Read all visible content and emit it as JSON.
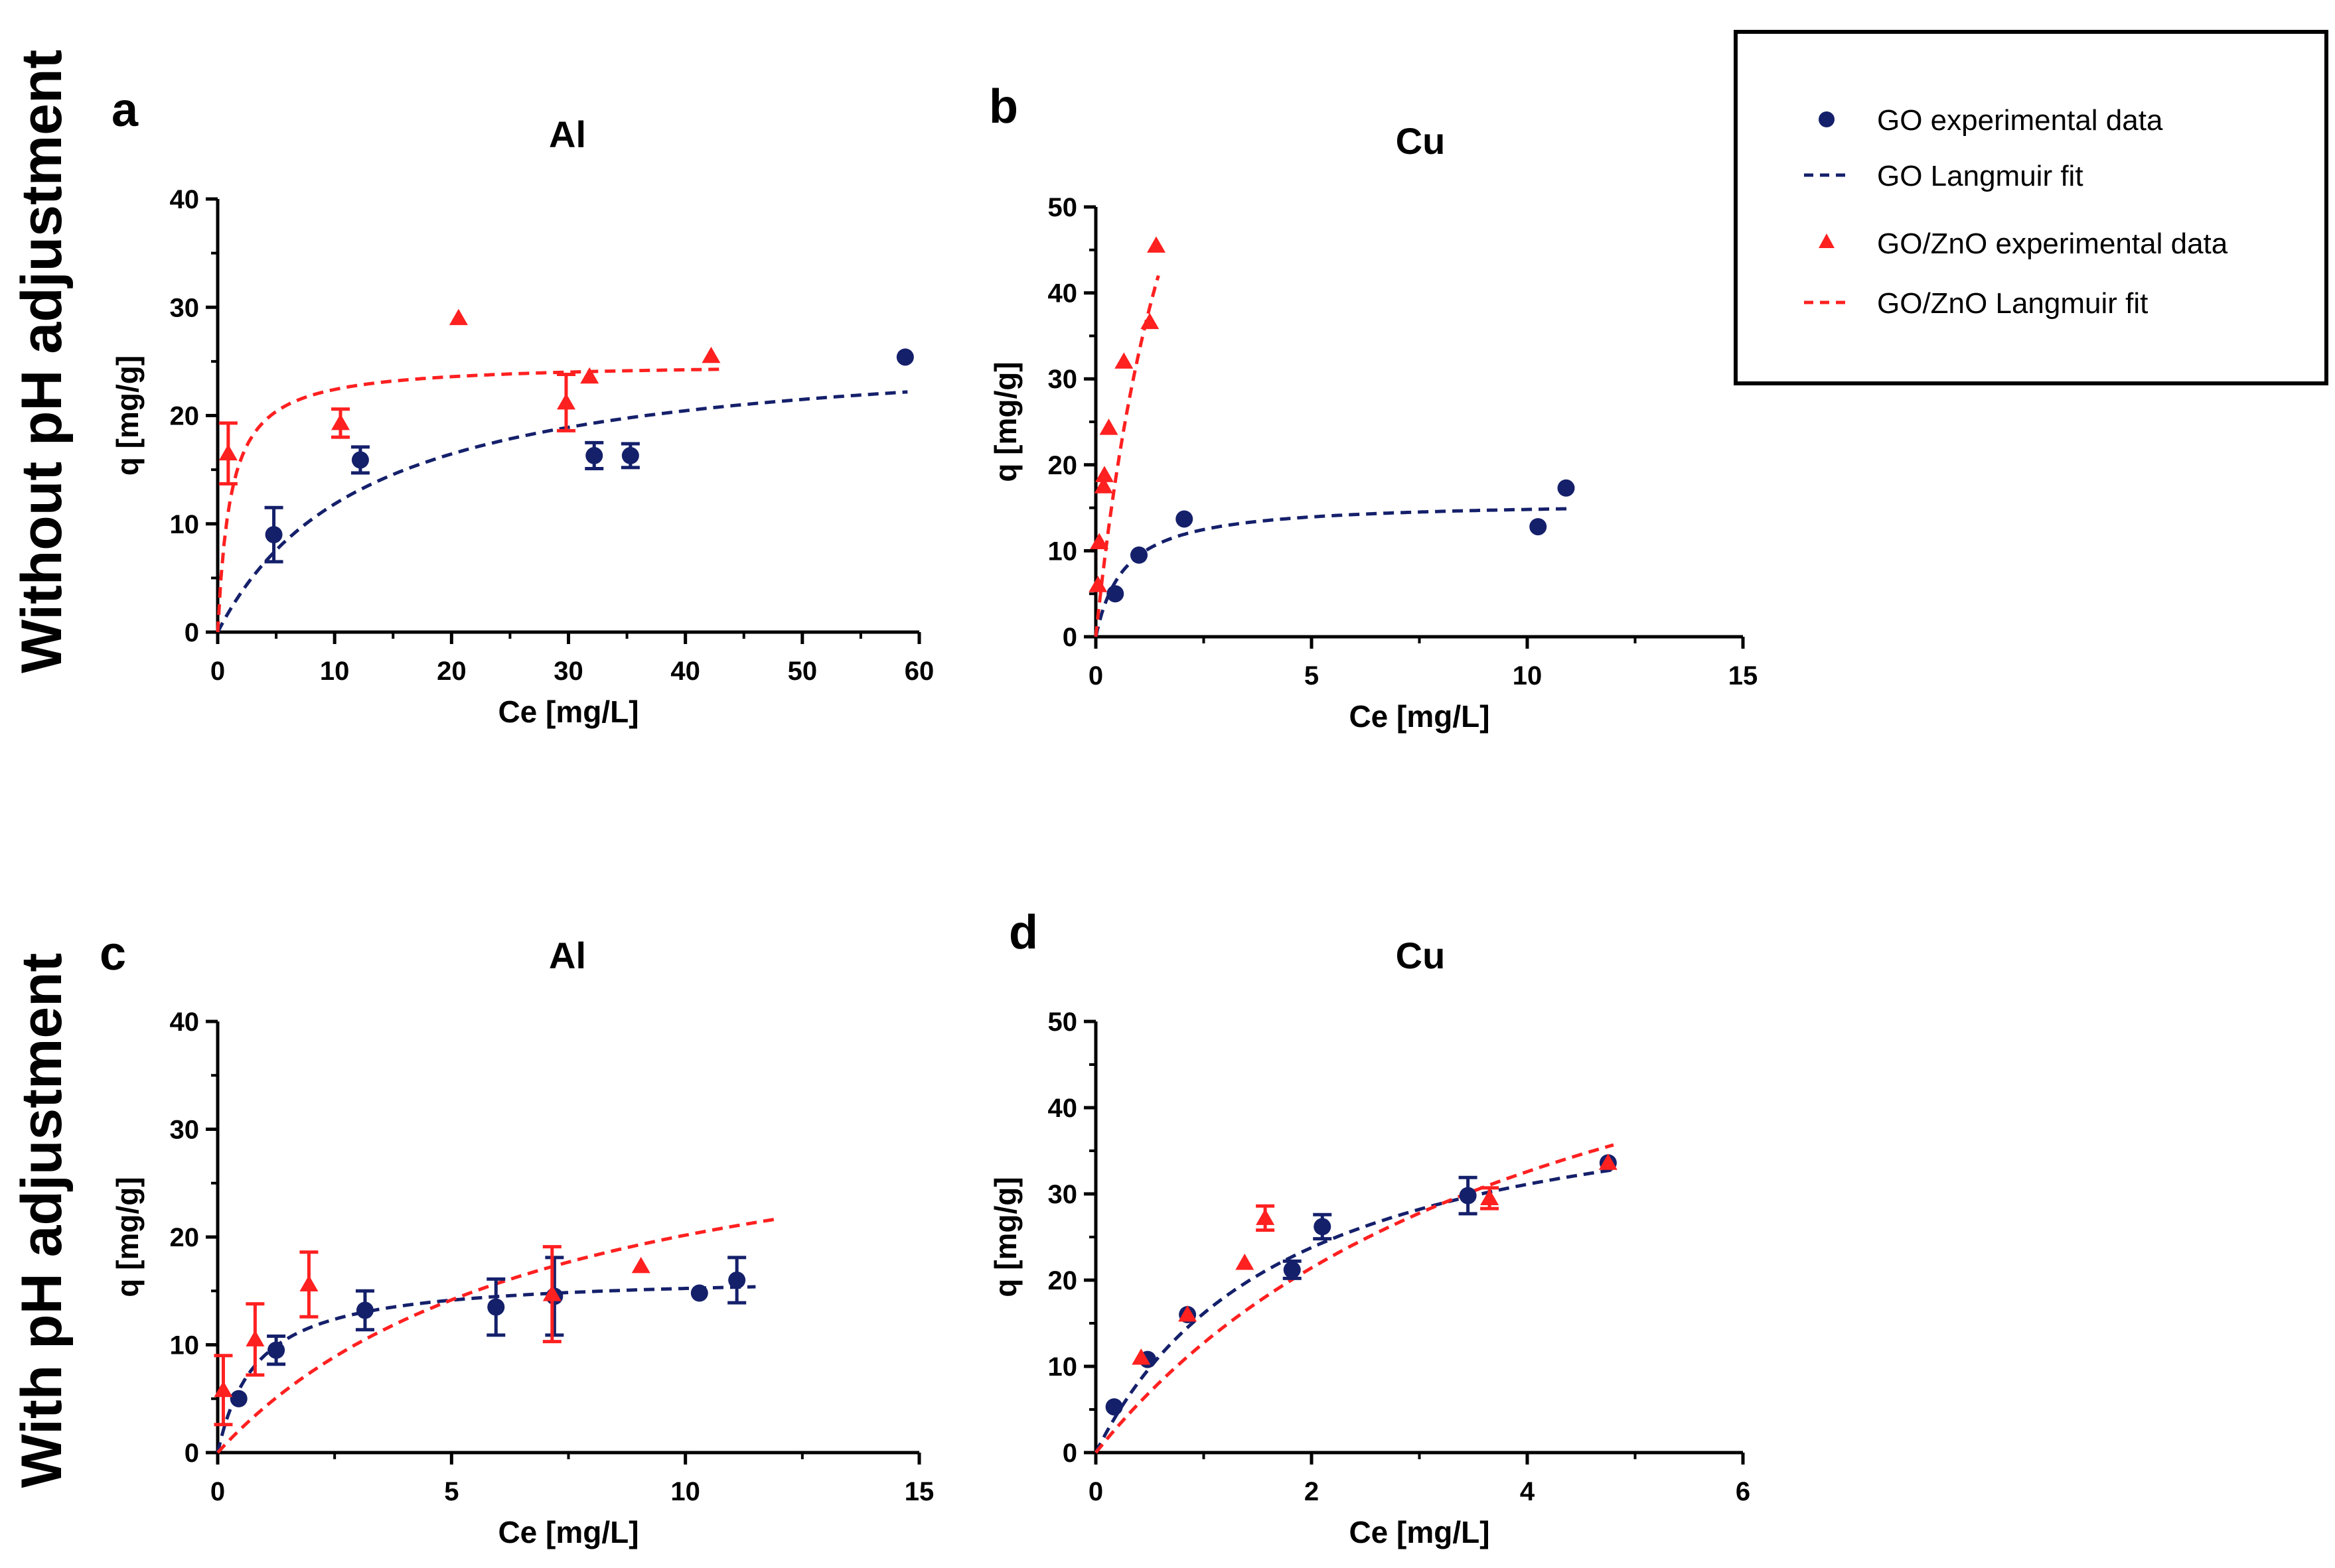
{
  "row_labels": [
    "Without pH adjustment",
    "With pH adjustment"
  ],
  "colors": {
    "go": "#15206b",
    "gozno": "#ff2020"
  },
  "legend": {
    "items": [
      {
        "label": "GO experimental data",
        "kind": "circle",
        "series": "go"
      },
      {
        "label": "GO Langmuir fit",
        "kind": "dash",
        "series": "go"
      },
      {
        "label": "GO/ZnO experimental data",
        "kind": "triangle",
        "series": "gozno"
      },
      {
        "label": "GO/ZnO Langmuir fit",
        "kind": "dash",
        "series": "gozno"
      }
    ]
  },
  "chart_data": [
    {
      "id": "a",
      "letter": "a",
      "title": "Al",
      "type": "scatter",
      "xlabel": "Ce [mg/L]",
      "ylabel": "q [mg/g]",
      "xlim": [
        0,
        60
      ],
      "ylim": [
        0,
        40
      ],
      "xticks": [
        0,
        10,
        20,
        30,
        40,
        50,
        60
      ],
      "yticks": [
        0,
        10,
        20,
        30,
        40
      ],
      "series": [
        {
          "name": "GO experimental data",
          "marker": "circle",
          "color": "go",
          "points": [
            {
              "x": 4.8,
              "y": 9.0,
              "err": 2.5
            },
            {
              "x": 12.2,
              "y": 15.9,
              "err": 1.2
            },
            {
              "x": 32.2,
              "y": 16.3,
              "err": 1.2
            },
            {
              "x": 35.3,
              "y": 16.3,
              "err": 1.1
            },
            {
              "x": 58.8,
              "y": 25.4,
              "err": 0
            }
          ]
        },
        {
          "name": "GO Langmuir fit",
          "fit": true,
          "color": "go",
          "qmax": 27.0,
          "K": 0.078,
          "xrange": [
            0,
            59
          ]
        },
        {
          "name": "GO/ZnO experimental data",
          "marker": "triangle",
          "color": "gozno",
          "points": [
            {
              "x": 0.9,
              "y": 16.5,
              "err": 2.8
            },
            {
              "x": 10.5,
              "y": 19.3,
              "err": 1.3
            },
            {
              "x": 20.6,
              "y": 29.0,
              "err": 0
            },
            {
              "x": 29.8,
              "y": 21.2,
              "err": 2.6
            },
            {
              "x": 31.8,
              "y": 23.6,
              "err": 0
            },
            {
              "x": 42.2,
              "y": 25.5,
              "err": 0
            }
          ]
        },
        {
          "name": "GO/ZnO Langmuir fit",
          "fit": true,
          "color": "gozno",
          "qmax": 24.9,
          "K": 0.9,
          "xrange": [
            0,
            43
          ]
        }
      ]
    },
    {
      "id": "b",
      "letter": "b",
      "title": "Cu",
      "type": "scatter",
      "xlabel": "Ce [mg/L]",
      "ylabel": "q [mg/g]",
      "xlim": [
        0,
        15
      ],
      "ylim": [
        0,
        50
      ],
      "xticks": [
        0,
        5,
        10,
        15
      ],
      "yticks": [
        0,
        10,
        20,
        30,
        40,
        50
      ],
      "series": [
        {
          "name": "GO experimental data",
          "marker": "circle",
          "color": "go",
          "points": [
            {
              "x": 0.45,
              "y": 5.0,
              "err": 0
            },
            {
              "x": 1.0,
              "y": 9.5,
              "err": 0
            },
            {
              "x": 2.05,
              "y": 13.7,
              "err": 0
            },
            {
              "x": 10.25,
              "y": 12.8,
              "err": 0
            },
            {
              "x": 10.9,
              "y": 17.3,
              "err": 0
            }
          ]
        },
        {
          "name": "GO Langmuir fit",
          "fit": true,
          "color": "go",
          "qmax": 15.8,
          "K": 1.5,
          "xrange": [
            0,
            11
          ]
        },
        {
          "name": "GO/ZnO experimental data",
          "marker": "triangle",
          "color": "gozno",
          "points": [
            {
              "x": 0.05,
              "y": 6.0,
              "err": 0
            },
            {
              "x": 0.08,
              "y": 11.0,
              "err": 0
            },
            {
              "x": 0.18,
              "y": 17.5,
              "err": 0
            },
            {
              "x": 0.2,
              "y": 18.8,
              "err": 0
            },
            {
              "x": 0.3,
              "y": 24.3,
              "err": 0
            },
            {
              "x": 0.65,
              "y": 32.0,
              "err": 0
            },
            {
              "x": 1.25,
              "y": 36.6,
              "err": 0
            },
            {
              "x": 1.4,
              "y": 45.5,
              "err": 0
            }
          ]
        },
        {
          "name": "GO/ZnO Langmuir fit",
          "fit": true,
          "color": "gozno",
          "qmax": 105,
          "K": 0.46,
          "xrange": [
            0,
            1.45
          ]
        }
      ]
    },
    {
      "id": "c",
      "letter": "c",
      "title": "Al",
      "type": "scatter",
      "xlabel": "Ce [mg/L]",
      "ylabel": "q [mg/g]",
      "xlim": [
        0,
        15
      ],
      "ylim": [
        0,
        40
      ],
      "xticks": [
        0,
        5,
        10,
        15
      ],
      "yticks": [
        0,
        10,
        20,
        30,
        40
      ],
      "series": [
        {
          "name": "GO experimental data",
          "marker": "circle",
          "color": "go",
          "points": [
            {
              "x": 0.45,
              "y": 5.0,
              "err": 0
            },
            {
              "x": 1.25,
              "y": 9.5,
              "err": 1.3
            },
            {
              "x": 3.15,
              "y": 13.2,
              "err": 1.8
            },
            {
              "x": 5.95,
              "y": 13.5,
              "err": 2.6
            },
            {
              "x": 7.2,
              "y": 14.5,
              "err": 3.6
            },
            {
              "x": 10.3,
              "y": 14.8,
              "err": 0
            },
            {
              "x": 11.1,
              "y": 16.0,
              "err": 2.1
            }
          ]
        },
        {
          "name": "GO Langmuir fit",
          "fit": true,
          "color": "go",
          "qmax": 16.5,
          "K": 1.2,
          "xrange": [
            0,
            11.5
          ]
        },
        {
          "name": "GO/ZnO experimental data",
          "marker": "triangle",
          "color": "gozno",
          "points": [
            {
              "x": 0.12,
              "y": 5.8,
              "err": 3.2
            },
            {
              "x": 0.8,
              "y": 10.5,
              "err": 3.3
            },
            {
              "x": 1.95,
              "y": 15.6,
              "err": 3.0
            },
            {
              "x": 7.15,
              "y": 14.7,
              "err": 4.4
            },
            {
              "x": 9.05,
              "y": 17.3,
              "err": 0
            }
          ]
        },
        {
          "name": "GO/ZnO Langmuir fit",
          "fit": true,
          "color": "gozno",
          "qmax": 35.0,
          "K": 0.136,
          "xrange": [
            0,
            12
          ]
        }
      ]
    },
    {
      "id": "d",
      "letter": "d",
      "title": "Cu",
      "type": "scatter",
      "xlabel": "Ce [mg/L]",
      "ylabel": "q [mg/g]",
      "xlim": [
        0,
        6
      ],
      "ylim": [
        0,
        50
      ],
      "xticks": [
        0,
        2,
        4,
        6
      ],
      "yticks": [
        0,
        10,
        20,
        30,
        40,
        50
      ],
      "series": [
        {
          "name": "GO experimental data",
          "marker": "circle",
          "color": "go",
          "points": [
            {
              "x": 0.17,
              "y": 5.3,
              "err": 0
            },
            {
              "x": 0.48,
              "y": 10.8,
              "err": 0
            },
            {
              "x": 0.85,
              "y": 16.0,
              "err": 0
            },
            {
              "x": 1.82,
              "y": 21.2,
              "err": 1.0
            },
            {
              "x": 2.1,
              "y": 26.2,
              "err": 1.4
            },
            {
              "x": 3.45,
              "y": 29.8,
              "err": 2.1
            },
            {
              "x": 4.75,
              "y": 33.6,
              "err": 0
            }
          ]
        },
        {
          "name": "GO Langmuir fit",
          "fit": true,
          "color": "go",
          "qmax": 45.0,
          "K": 0.56,
          "xrange": [
            0,
            4.8
          ]
        },
        {
          "name": "GO/ZnO experimental data",
          "marker": "triangle",
          "color": "gozno",
          "points": [
            {
              "x": 0.42,
              "y": 11.0,
              "err": 0
            },
            {
              "x": 0.85,
              "y": 16.0,
              "err": 0
            },
            {
              "x": 1.38,
              "y": 22.0,
              "err": 0
            },
            {
              "x": 1.57,
              "y": 27.2,
              "err": 1.4
            },
            {
              "x": 3.65,
              "y": 29.5,
              "err": 1.2
            },
            {
              "x": 4.75,
              "y": 33.6,
              "err": 0
            }
          ]
        },
        {
          "name": "GO/ZnO Langmuir fit",
          "fit": true,
          "color": "gozno",
          "qmax": 68.0,
          "K": 0.23,
          "xrange": [
            0,
            4.8
          ]
        }
      ]
    }
  ]
}
